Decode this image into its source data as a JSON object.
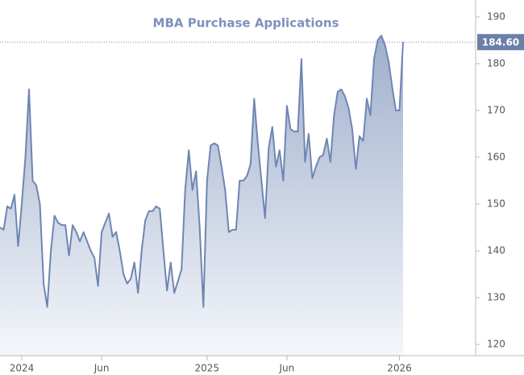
{
  "chart_data": {
    "type": "area",
    "title": "MBA Purchase Applications",
    "color": "#6f86b3",
    "categories": [
      null,
      null,
      null,
      null,
      null,
      null,
      "2024",
      null,
      null,
      null,
      null,
      null,
      null,
      null,
      null,
      null,
      null,
      null,
      null,
      null,
      null,
      null,
      null,
      null,
      null,
      null,
      null,
      null,
      "Jun",
      null,
      null,
      null,
      null,
      null,
      null,
      null,
      null,
      null,
      null,
      null,
      null,
      null,
      null,
      null,
      null,
      null,
      null,
      null,
      null,
      null,
      null,
      null,
      null,
      null,
      null,
      null,
      null,
      "2025",
      null,
      null,
      null,
      null,
      null,
      null,
      null,
      null,
      null,
      null,
      null,
      null,
      null,
      null,
      null,
      null,
      null,
      null,
      null,
      null,
      null,
      "Jun",
      null,
      null,
      null,
      null,
      null,
      null,
      null,
      null,
      null,
      null,
      null,
      null,
      null,
      null,
      null,
      null,
      null,
      null,
      null,
      null,
      null,
      null,
      null,
      null,
      null,
      null,
      null,
      null,
      null,
      null,
      "2026",
      null
    ],
    "values": [
      145,
      144.5,
      149.5,
      149,
      152,
      141,
      150,
      160,
      174.5,
      155,
      154,
      150,
      133,
      128,
      140,
      147.5,
      146,
      145.5,
      145.5,
      139,
      145.5,
      144,
      142,
      144,
      142,
      140,
      138.5,
      132.5,
      144,
      146,
      148,
      143,
      144,
      140,
      135,
      133,
      134,
      137.5,
      131,
      140,
      146.5,
      148.5,
      148.5,
      149.5,
      149,
      140,
      131.5,
      137.5,
      131,
      133.5,
      136,
      153,
      161.5,
      153,
      157,
      145,
      128,
      155,
      162.5,
      163,
      162.5,
      158,
      153,
      144,
      144.5,
      144.5,
      155,
      155,
      156,
      158.5,
      172.5,
      163,
      155,
      147,
      162,
      166.5,
      158,
      161.5,
      155,
      171,
      166,
      165.5,
      165.5,
      181,
      159,
      165,
      155.5,
      158,
      160,
      160.5,
      164,
      159,
      169,
      174,
      174.5,
      173,
      170.5,
      166,
      157.5,
      164.5,
      163.5,
      172.5,
      169,
      181,
      185,
      186,
      184,
      180.5,
      175,
      170,
      170,
      184.6
    ],
    "value_labels": [
      null,
      null,
      null,
      null,
      null,
      null,
      null,
      null,
      null,
      null,
      null,
      null,
      null,
      null,
      null,
      null,
      null,
      null,
      null,
      null,
      null,
      null,
      null,
      null,
      null,
      null,
      null,
      null,
      null,
      null,
      null,
      null,
      null,
      null,
      null,
      null,
      null,
      null,
      null,
      null,
      null,
      null,
      null,
      null,
      null,
      null,
      null,
      null,
      null,
      null,
      null,
      null,
      null,
      null,
      null,
      null,
      null,
      null,
      null,
      null,
      null,
      null,
      null,
      null,
      null,
      null,
      null,
      null,
      null,
      null,
      null,
      null,
      null,
      null,
      null,
      null,
      null,
      null,
      null,
      null,
      null,
      null,
      null,
      null,
      null,
      null,
      null,
      null,
      null,
      null,
      null,
      null,
      null,
      null,
      null,
      null,
      null,
      null,
      null,
      null,
      null,
      null,
      null,
      null,
      null,
      null,
      null,
      null,
      null,
      null,
      null,
      "184.60"
    ],
    "ylim": [
      117.6,
      193.6
    ],
    "yticks": [
      120,
      130,
      140,
      150,
      160,
      170,
      180,
      190
    ]
  }
}
